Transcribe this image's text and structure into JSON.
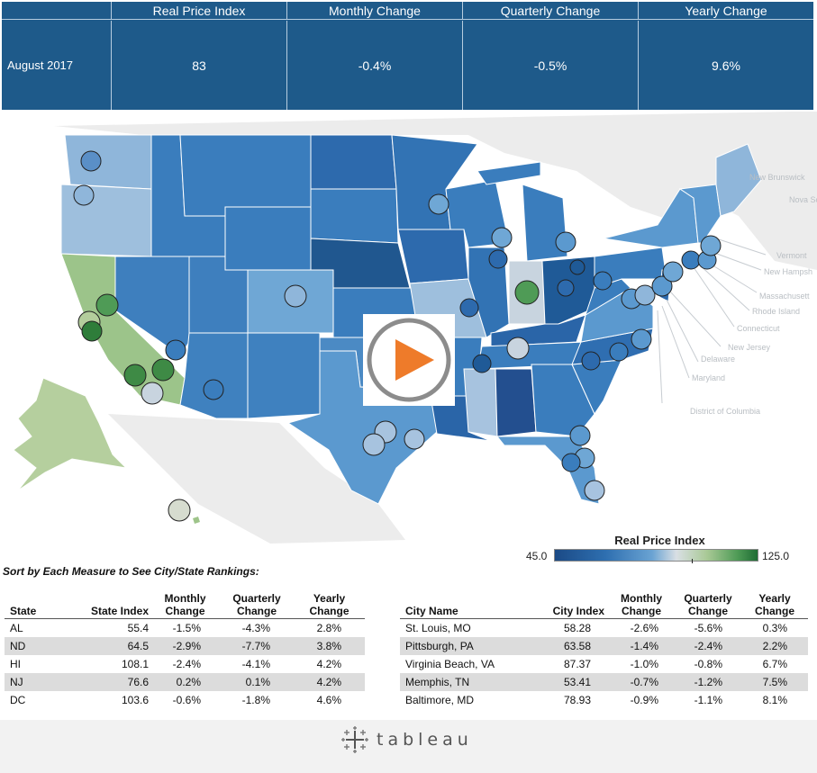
{
  "header": {
    "columns": [
      "Real Price Index",
      "Monthly Change",
      "Quarterly Change",
      "Yearly Change"
    ],
    "row": {
      "label": "August 2017",
      "values": [
        "83",
        "-0.4%",
        "-0.5%",
        "9.6%"
      ]
    }
  },
  "map": {
    "canada_labels": [
      "New Brunswick",
      "Nova Scotia"
    ],
    "callout_labels": [
      "Vermont",
      "New Hampsh",
      "Massachusett",
      "Rhode Island",
      "Connecticut",
      "New Jersey",
      "Delaware",
      "Maryland",
      "District of Columbia"
    ],
    "play_icon": "play-icon"
  },
  "legend": {
    "title": "Real Price Index",
    "min": "45.0",
    "max": "125.0"
  },
  "sort_caption": "Sort by Each Measure to See City/State Rankings:",
  "state_table": {
    "headers": [
      "State",
      "State Index",
      "Monthly Change",
      "Quarterly Change",
      "Yearly Change"
    ],
    "rows": [
      [
        "AL",
        "55.4",
        "-1.5%",
        "-4.3%",
        "2.8%"
      ],
      [
        "ND",
        "64.5",
        "-2.9%",
        "-7.7%",
        "3.8%"
      ],
      [
        "HI",
        "108.1",
        "-2.4%",
        "-4.1%",
        "4.2%"
      ],
      [
        "NJ",
        "76.6",
        "0.2%",
        "0.1%",
        "4.2%"
      ],
      [
        "DC",
        "103.6",
        "-0.6%",
        "-1.8%",
        "4.6%"
      ]
    ]
  },
  "city_table": {
    "headers": [
      "City Name",
      "City Index",
      "Monthly Change",
      "Quarterly Change",
      "Yearly Change"
    ],
    "rows": [
      [
        "St. Louis, MO",
        "58.28",
        "-2.6%",
        "-5.6%",
        "0.3%"
      ],
      [
        "Pittsburgh, PA",
        "63.58",
        "-1.4%",
        "-2.4%",
        "2.2%"
      ],
      [
        "Virginia Beach, VA",
        "87.37",
        "-1.0%",
        "-0.8%",
        "6.7%"
      ],
      [
        "Memphis, TN",
        "53.41",
        "-0.7%",
        "-1.2%",
        "7.5%"
      ],
      [
        "Baltimore, MD",
        "78.93",
        "-0.9%",
        "-1.1%",
        "8.1%"
      ]
    ]
  },
  "footer": {
    "brand": "tableau",
    "logo_icon": "tableau-logo-icon"
  },
  "colors": {
    "header_bg": "#1e5a8a",
    "low": "#1b4a86",
    "mid": "#d9dfe4",
    "high": "#1e6d34",
    "play": "#ee7b2a"
  }
}
